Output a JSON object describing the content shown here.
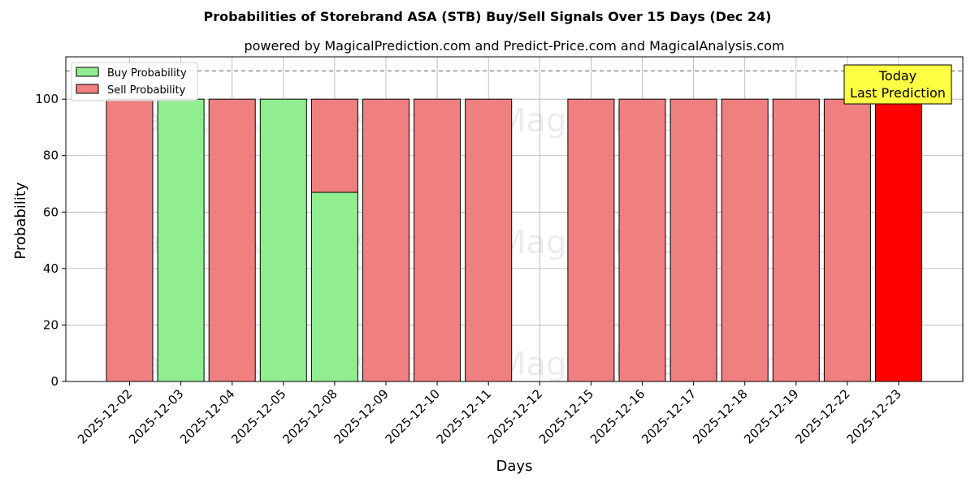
{
  "chart_data": {
    "type": "bar",
    "stacked": true,
    "title": "Probabilities of Storebrand ASA (STB) Buy/Sell Signals Over 15 Days (Dec 24)",
    "subtitle": "powered by MagicalPrediction.com and Predict-Price.com and MagicalAnalysis.com",
    "xlabel": "Days",
    "ylabel": "Probability",
    "ylim": [
      0,
      115
    ],
    "yticks": [
      0,
      20,
      40,
      60,
      80,
      100
    ],
    "grid": true,
    "legend_position": "top-left",
    "categories": [
      "2025-12-02",
      "2025-12-03",
      "2025-12-04",
      "2025-12-05",
      "2025-12-08",
      "2025-12-09",
      "2025-12-10",
      "2025-12-11",
      "2025-12-12",
      "2025-12-15",
      "2025-12-16",
      "2025-12-17",
      "2025-12-18",
      "2025-12-19",
      "2025-12-22",
      "2025-12-23"
    ],
    "series": [
      {
        "name": "Buy Probability",
        "color": "#90ee90",
        "values": [
          0,
          100,
          0,
          100,
          67,
          0,
          0,
          0,
          null,
          0,
          0,
          0,
          0,
          0,
          0,
          0
        ]
      },
      {
        "name": "Sell Probability",
        "color": "#f08080",
        "values": [
          100,
          0,
          100,
          0,
          33,
          100,
          100,
          100,
          null,
          100,
          100,
          100,
          100,
          100,
          100,
          100
        ]
      }
    ],
    "highlight": {
      "index": 15,
      "color": "#ff0000"
    },
    "reference_line": {
      "y": 110,
      "style": "dashed",
      "color": "#808080"
    },
    "annotation": {
      "lines": [
        "Today",
        "Last Prediction"
      ],
      "background": "#ffff44",
      "target_index": 15
    },
    "watermarks": [
      "MagicalAnalysis.com",
      "MagicalPrediction.com"
    ]
  }
}
